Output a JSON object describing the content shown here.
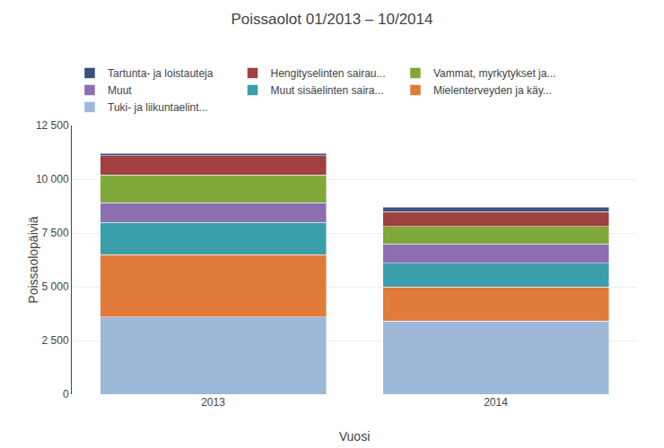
{
  "chart_data": {
    "type": "bar",
    "stacked": true,
    "title": "Poissaolot 01/2013 – 10/2014",
    "xlabel": "Vuosi",
    "ylabel": "Poissaolopäiviä",
    "categories": [
      "2013",
      "2014"
    ],
    "series": [
      {
        "name": "Tuki- ja liikuntaelint...",
        "color": "#9db8d9",
        "values": [
          3600,
          3400
        ]
      },
      {
        "name": "Mielenterveyden ja käy...",
        "color": "#e07b39",
        "values": [
          2900,
          1600
        ]
      },
      {
        "name": "Muut sisäelinten saira...",
        "color": "#3b9eab",
        "values": [
          1500,
          1100
        ]
      },
      {
        "name": "Muut",
        "color": "#8b6fae",
        "values": [
          900,
          900
        ]
      },
      {
        "name": "Vammat, myrkytykset ja...",
        "color": "#7ea83a",
        "values": [
          1300,
          800
        ]
      },
      {
        "name": "Hengityselinten sairau...",
        "color": "#a04040",
        "values": [
          900,
          700
        ]
      },
      {
        "name": "Tartunta- ja loistauteja",
        "color": "#3a5080",
        "values": [
          100,
          200
        ]
      }
    ],
    "ylim": [
      0,
      12500
    ],
    "yticks": [
      0,
      {
        "value": 2500,
        "label": "2 500"
      },
      {
        "value": 5000,
        "label": "5 000"
      },
      {
        "value": 7500,
        "label": "7 500"
      },
      {
        "value": 10000,
        "label": "10 000"
      },
      {
        "value": 12500,
        "label": "12 500"
      }
    ],
    "grid": true,
    "legend": "top"
  }
}
